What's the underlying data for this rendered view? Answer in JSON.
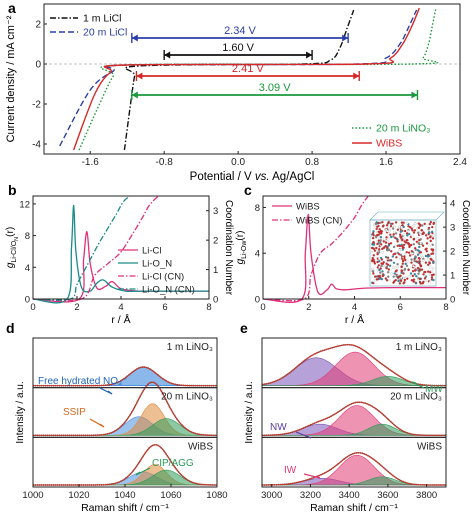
{
  "chart_data": [
    {
      "panel": "a",
      "type": "line",
      "xlabel": "Potential / V vs. Ag/AgCl",
      "ylabel": "Current density / mA cm⁻²",
      "xlim": [
        -2.1,
        2.4
      ],
      "ylim": [
        -4.5,
        3.0
      ],
      "xticks": [
        "-1.6",
        "-0.8",
        "0.0",
        "0.8",
        "1.6",
        "2.4"
      ],
      "yticks": [
        "2",
        "0",
        "-2",
        "-4"
      ],
      "series": [
        {
          "name": "1 m LiCl",
          "color": "#111111",
          "style": "dashdot",
          "x": [
            -1.23,
            -1.17,
            -1.12,
            -1.08,
            0.7,
            1.0,
            1.1,
            1.18,
            1.25
          ],
          "y": [
            -4.3,
            -2.2,
            -0.6,
            -0.1,
            0.0,
            0.2,
            0.8,
            1.8,
            2.7
          ]
        },
        {
          "name": "20 m LiCl",
          "color": "#2c3fa8",
          "style": "dashed",
          "x": [
            -1.93,
            -1.6,
            -1.35,
            -1.2,
            1.3,
            1.6,
            1.75,
            1.85,
            1.93
          ],
          "y": [
            -4.1,
            -1.3,
            -0.35,
            -0.05,
            0.0,
            0.3,
            1.0,
            1.9,
            2.7
          ]
        },
        {
          "name": "20 m LiNO₃",
          "color": "#1a9a3c",
          "style": "dotted",
          "x": [
            -1.72,
            -1.5,
            -1.35,
            -1.22,
            1.9,
            2.0,
            2.06,
            2.1,
            2.14
          ],
          "y": [
            -4.3,
            -2.0,
            -0.6,
            -0.05,
            0.0,
            0.3,
            1.0,
            1.9,
            2.8
          ]
        },
        {
          "name": "WiBS",
          "color": "#d62828",
          "style": "solid",
          "x": [
            -1.78,
            -1.55,
            -1.38,
            -1.2,
            1.4,
            1.65,
            1.78,
            1.88,
            1.96
          ],
          "y": [
            -4.3,
            -1.5,
            -0.4,
            -0.05,
            0.0,
            0.3,
            1.0,
            1.9,
            2.8
          ]
        }
      ],
      "annotations": [
        {
          "text": "2.34 V",
          "from": -1.15,
          "to": 1.19,
          "y": 1.3,
          "color": "#2c3fa8"
        },
        {
          "text": "1.60 V",
          "from": -0.8,
          "to": 0.8,
          "y": 0.45,
          "color": "#111111"
        },
        {
          "text": "2.41 V",
          "from": -1.1,
          "to": 1.31,
          "y": -0.6,
          "color": "#d62828"
        },
        {
          "text": "3.09 V",
          "from": -1.15,
          "to": 1.94,
          "y": -1.55,
          "color": "#1a9a3c"
        }
      ]
    },
    {
      "panel": "b",
      "type": "line",
      "xlabel": "r / Å",
      "ylabel": "g_Li-Cl/O_N(r)",
      "ylabel_right": "Coordination Number",
      "xlim": [
        0,
        8
      ],
      "ylim": [
        0,
        13
      ],
      "ylim_right": [
        0,
        3.5
      ],
      "xticks": [
        "0",
        "2",
        "4",
        "6",
        "8"
      ],
      "yticks": [
        "0",
        "4",
        "8",
        "12"
      ],
      "yticks_right": [
        "0",
        "1",
        "2",
        "3"
      ],
      "series": [
        {
          "name": "Li-Cl",
          "color": "#e0307a",
          "style": "solid",
          "axis": "left",
          "x": [
            0,
            2.1,
            2.3,
            2.45,
            2.6,
            2.9,
            3.3,
            3.6,
            4.0,
            4.8,
            6,
            8
          ],
          "y": [
            0,
            0,
            5.0,
            8.5,
            4.5,
            1.4,
            1.6,
            2.2,
            1.3,
            1.0,
            1.0,
            1.0
          ]
        },
        {
          "name": "Li-O_N",
          "color": "#1a8a8a",
          "style": "solid",
          "axis": "left",
          "x": [
            0,
            1.55,
            1.75,
            1.85,
            1.95,
            2.2,
            2.6,
            2.9,
            3.2,
            3.6,
            4.2,
            5,
            8
          ],
          "y": [
            0,
            0,
            6.5,
            11.8,
            6.0,
            1.5,
            1.0,
            2.0,
            2.4,
            1.5,
            1.0,
            1.0,
            1.0
          ]
        },
        {
          "name": "Li-Cl (CN)",
          "color": "#e0307a",
          "style": "dashdot",
          "axis": "right",
          "x": [
            0,
            2.2,
            2.8,
            3.4,
            4.0,
            4.6,
            5.0,
            5.3,
            5.7
          ],
          "y": [
            0,
            0,
            0.8,
            1.2,
            1.6,
            2.3,
            2.8,
            3.2,
            3.5
          ]
        },
        {
          "name": "Li-O_N (CN)",
          "color": "#1a8a8a",
          "style": "dashdot",
          "axis": "right",
          "x": [
            0,
            1.7,
            2.0,
            2.5,
            3.0,
            3.4,
            3.8,
            4.1,
            4.4
          ],
          "y": [
            0,
            0,
            0.5,
            1.2,
            1.9,
            2.4,
            2.9,
            3.3,
            3.5
          ]
        }
      ]
    },
    {
      "panel": "c",
      "type": "line",
      "xlabel": "r / Å",
      "ylabel": "g_Li-Ow(r)",
      "ylabel_right": "Coordination Number",
      "xlim": [
        0,
        8
      ],
      "ylim": [
        0,
        9
      ],
      "ylim_right": [
        0,
        4.3
      ],
      "xticks": [
        "0",
        "2",
        "4",
        "6",
        "8"
      ],
      "yticks": [
        "0",
        "4",
        "8"
      ],
      "yticks_right": [
        "0",
        "1",
        "2",
        "3",
        "4"
      ],
      "series": [
        {
          "name": "WiBS",
          "color": "#e0307a",
          "style": "solid",
          "axis": "left",
          "x": [
            0,
            1.7,
            1.85,
            1.98,
            2.1,
            2.4,
            2.8,
            3.0,
            3.2,
            3.6,
            4.5,
            6,
            8
          ],
          "y": [
            0,
            0,
            4.0,
            7.4,
            4.0,
            0.6,
            0.8,
            1.3,
            0.9,
            0.8,
            0.95,
            1.0,
            1.0
          ]
        },
        {
          "name": "WiBS (CN)",
          "color": "#e0307a",
          "style": "dashdot",
          "axis": "right",
          "x": [
            0,
            1.8,
            2.1,
            2.5,
            3.0,
            3.5,
            4.0,
            4.3,
            4.6
          ],
          "y": [
            0,
            0,
            1.0,
            1.9,
            2.3,
            2.8,
            3.4,
            3.9,
            4.3
          ]
        }
      ]
    },
    {
      "panel": "d",
      "type": "area",
      "xlabel": "Raman shift / cm⁻¹",
      "ylabel": "Intensity / a.u.",
      "xlim": [
        1000,
        1080
      ],
      "xticks": [
        "1000",
        "1020",
        "1040",
        "1060",
        "1080"
      ],
      "subpanels": [
        {
          "label": "1 m LiNO₃",
          "components": [
            {
              "center": 1048,
              "width": 6,
              "height": 0.5,
              "color": "#2c7bd8"
            }
          ]
        },
        {
          "label": "20 m LiNO₃",
          "components": [
            {
              "center": 1046,
              "width": 6,
              "height": 0.5,
              "color": "#4a90e0"
            },
            {
              "center": 1052,
              "width": 5,
              "height": 0.85,
              "color": "#e08a3a"
            },
            {
              "center": 1058,
              "width": 6,
              "height": 0.45,
              "color": "#2e9b5a"
            }
          ]
        },
        {
          "label": "WiBS",
          "components": [
            {
              "center": 1048,
              "width": 6,
              "height": 0.35,
              "color": "#4a90e0"
            },
            {
              "center": 1053,
              "width": 5,
              "height": 0.55,
              "color": "#e08a3a"
            },
            {
              "center": 1058,
              "width": 6,
              "height": 0.4,
              "color": "#2e9b5a"
            }
          ]
        }
      ],
      "annotations": [
        "Free hydrated NO₃⁻",
        "SSIP",
        "CIP/AGG"
      ]
    },
    {
      "panel": "e",
      "type": "area",
      "xlabel": "Raman shift / cm⁻¹",
      "ylabel": "Intensity / a.u.",
      "xlim": [
        2950,
        3900
      ],
      "xticks": [
        "3000",
        "3200",
        "3400",
        "3600",
        "3800"
      ],
      "subpanels": [
        {
          "label": "1 m LiNO₃",
          "components": [
            {
              "center": 3230,
              "width": 110,
              "height": 0.75,
              "color": "#7a55b8"
            },
            {
              "center": 3430,
              "width": 100,
              "height": 0.9,
              "color": "#e03a73"
            },
            {
              "center": 3600,
              "width": 80,
              "height": 0.25,
              "color": "#2e9b5a"
            }
          ]
        },
        {
          "label": "20 m LiNO₃",
          "components": [
            {
              "center": 3250,
              "width": 90,
              "height": 0.3,
              "color": "#7a55b8"
            },
            {
              "center": 3440,
              "width": 90,
              "height": 0.8,
              "color": "#e03a73"
            },
            {
              "center": 3570,
              "width": 70,
              "height": 0.3,
              "color": "#2e9b5a"
            }
          ]
        },
        {
          "label": "WiBS",
          "components": [
            {
              "center": 3260,
              "width": 90,
              "height": 0.18,
              "color": "#7a55b8"
            },
            {
              "center": 3440,
              "width": 90,
              "height": 0.8,
              "color": "#e03a73"
            },
            {
              "center": 3570,
              "width": 70,
              "height": 0.22,
              "color": "#2e9b5a"
            }
          ]
        }
      ],
      "annotations": [
        "MW",
        "NW",
        "IW"
      ]
    }
  ],
  "labels": {
    "a": {
      "panel": "a",
      "xlabel_pre": "Potential / V ",
      "xlabel_vs": "vs.",
      "xlabel_post": " Ag/AgCl",
      "ylabel": "Current density / mA cm⁻²"
    },
    "b": {
      "panel": "b",
      "ylabel": "g",
      "ylabel_sub": "Li-Cl/O",
      "ylabel_subsub": "N",
      "ylabel_end": "(r)",
      "xlabel": "r / Å",
      "ylabel_right": "Coordination Number"
    },
    "c": {
      "panel": "c",
      "ylabel": "g",
      "ylabel_sub": "Li-Ow",
      "ylabel_end": "(r)",
      "xlabel": "r / Å",
      "ylabel_right": "Coordination Number"
    },
    "d": {
      "panel": "d",
      "xlabel": "Raman shift / cm⁻¹",
      "ylabel": "Intensity / a.u."
    },
    "e": {
      "panel": "e",
      "xlabel": "Raman shift / cm⁻¹",
      "ylabel": "Intensity / a.u."
    }
  }
}
